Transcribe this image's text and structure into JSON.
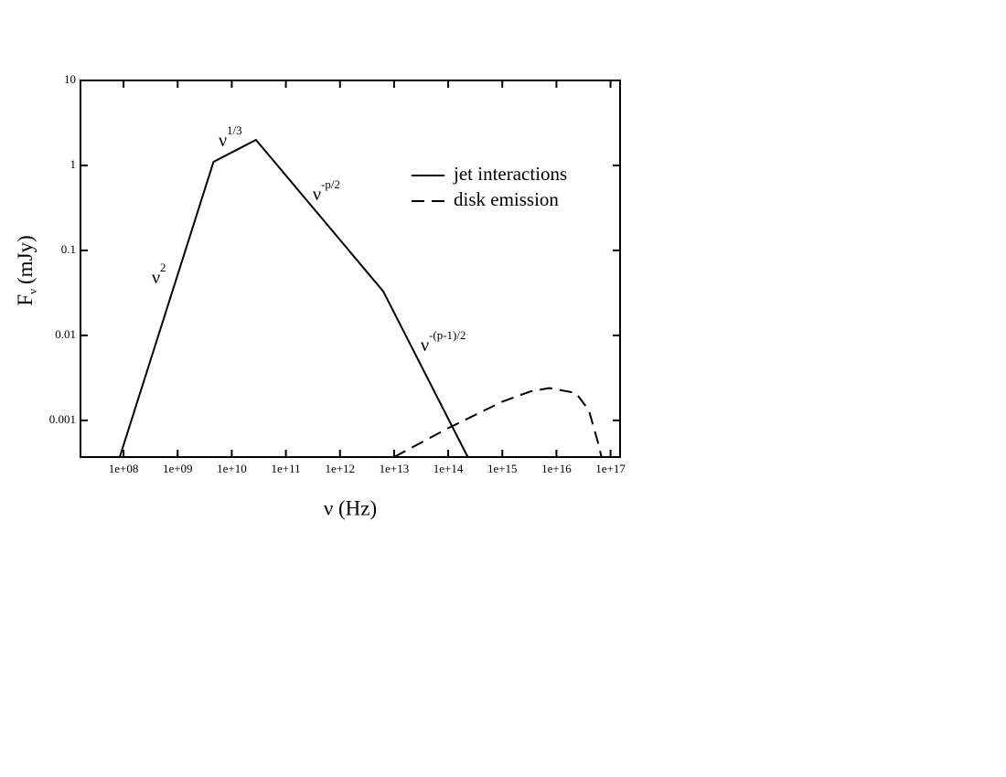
{
  "chart_data": {
    "type": "line",
    "xlabel": "ν (Hz)",
    "ylabel": {
      "text": "F",
      "sub": "ν",
      "rest": "(mJy)"
    },
    "xscale": "log",
    "yscale": "log",
    "xlim": [
      16000000,
      150000000000000000
    ],
    "ylim": [
      0.00037,
      10
    ],
    "xticks": [
      {
        "value": 100000000,
        "label": "1e+08"
      },
      {
        "value": 1000000000,
        "label": "1e+09"
      },
      {
        "value": 10000000000,
        "label": "1e+10"
      },
      {
        "value": 100000000000,
        "label": "1e+11"
      },
      {
        "value": 1000000000000,
        "label": "1e+12"
      },
      {
        "value": 10000000000000,
        "label": "1e+13"
      },
      {
        "value": 100000000000000,
        "label": "1e+14"
      },
      {
        "value": 1000000000000000,
        "label": "1e+15"
      },
      {
        "value": 10000000000000000,
        "label": "1e+16"
      },
      {
        "value": 100000000000000000,
        "label": "1e+17"
      }
    ],
    "yticks": [
      0.001,
      0.01,
      0.1,
      1,
      10
    ],
    "legend": "upper right",
    "series": [
      {
        "name": "jet interactions",
        "color": "#000000",
        "dash": "solid",
        "x": [
          85000000,
          4600000000,
          28000000000,
          6300000000000,
          230000000000000
        ],
        "values": [
          0.00037,
          1.1,
          2.0,
          0.033,
          0.00037
        ]
      },
      {
        "name": "disk emission",
        "color": "#000000",
        "dash": "dashed",
        "x": [
          10000000000000,
          100000000000000,
          1000000000000000,
          3400000000000000,
          7400000000000000,
          23000000000000000,
          40000000000000000,
          59000000000000000,
          68000000000000000
        ],
        "values": [
          0.00037,
          0.00081,
          0.00166,
          0.0022,
          0.0024,
          0.0021,
          0.0013,
          0.00054,
          0.00037
        ]
      }
    ],
    "annotations": [
      {
        "text": "ν",
        "sup": "2"
      },
      {
        "text": "ν",
        "sup": "1/3"
      },
      {
        "text": "ν",
        "sup": "-p/2"
      },
      {
        "text": "ν",
        "sup": "-(p-1)/2"
      }
    ]
  }
}
